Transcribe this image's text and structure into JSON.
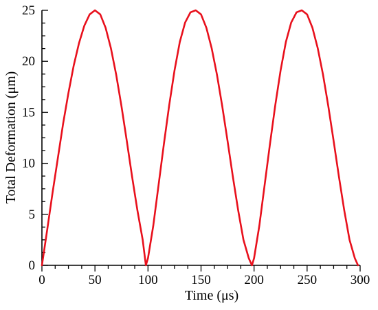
{
  "chart_data": {
    "type": "line",
    "title": "",
    "xlabel": "Time (μs)",
    "ylabel": "Total Deformation (μm)",
    "xlim": [
      0,
      300
    ],
    "ylim": [
      0,
      25
    ],
    "x_ticks": [
      "0",
      "50",
      "100",
      "150",
      "200",
      "250",
      "300"
    ],
    "y_ticks": [
      "0",
      "5",
      "10",
      "15",
      "20",
      "25"
    ],
    "grid": false,
    "legend": "none",
    "series": [
      {
        "color": "#e8101c",
        "x": [
          0,
          5,
          10,
          15,
          20,
          25,
          30,
          35,
          40,
          45,
          50,
          55,
          60,
          65,
          70,
          75,
          80,
          85,
          90,
          95,
          98,
          100,
          105,
          110,
          115,
          120,
          125,
          130,
          135,
          140,
          145,
          150,
          155,
          160,
          165,
          170,
          175,
          180,
          185,
          190,
          195,
          198,
          200,
          205,
          210,
          215,
          220,
          225,
          230,
          235,
          240,
          245,
          250,
          255,
          260,
          265,
          270,
          275,
          280,
          285,
          290,
          295,
          298
        ],
        "y": [
          0,
          3.5,
          7.1,
          10.5,
          13.9,
          16.9,
          19.6,
          21.8,
          23.5,
          24.6,
          25.0,
          24.6,
          23.3,
          21.3,
          18.7,
          15.6,
          12.2,
          8.7,
          5.4,
          2.5,
          0,
          0.7,
          3.9,
          7.9,
          11.9,
          15.7,
          19.1,
          21.9,
          23.8,
          24.8,
          25.0,
          24.6,
          23.3,
          21.3,
          18.7,
          15.6,
          12.2,
          8.7,
          5.4,
          2.5,
          0.7,
          0,
          0.7,
          3.9,
          7.9,
          11.9,
          15.7,
          19.1,
          21.9,
          23.8,
          24.8,
          25.0,
          24.6,
          23.3,
          21.3,
          18.7,
          15.6,
          12.2,
          8.7,
          5.4,
          2.5,
          0.7,
          0
        ]
      }
    ]
  }
}
